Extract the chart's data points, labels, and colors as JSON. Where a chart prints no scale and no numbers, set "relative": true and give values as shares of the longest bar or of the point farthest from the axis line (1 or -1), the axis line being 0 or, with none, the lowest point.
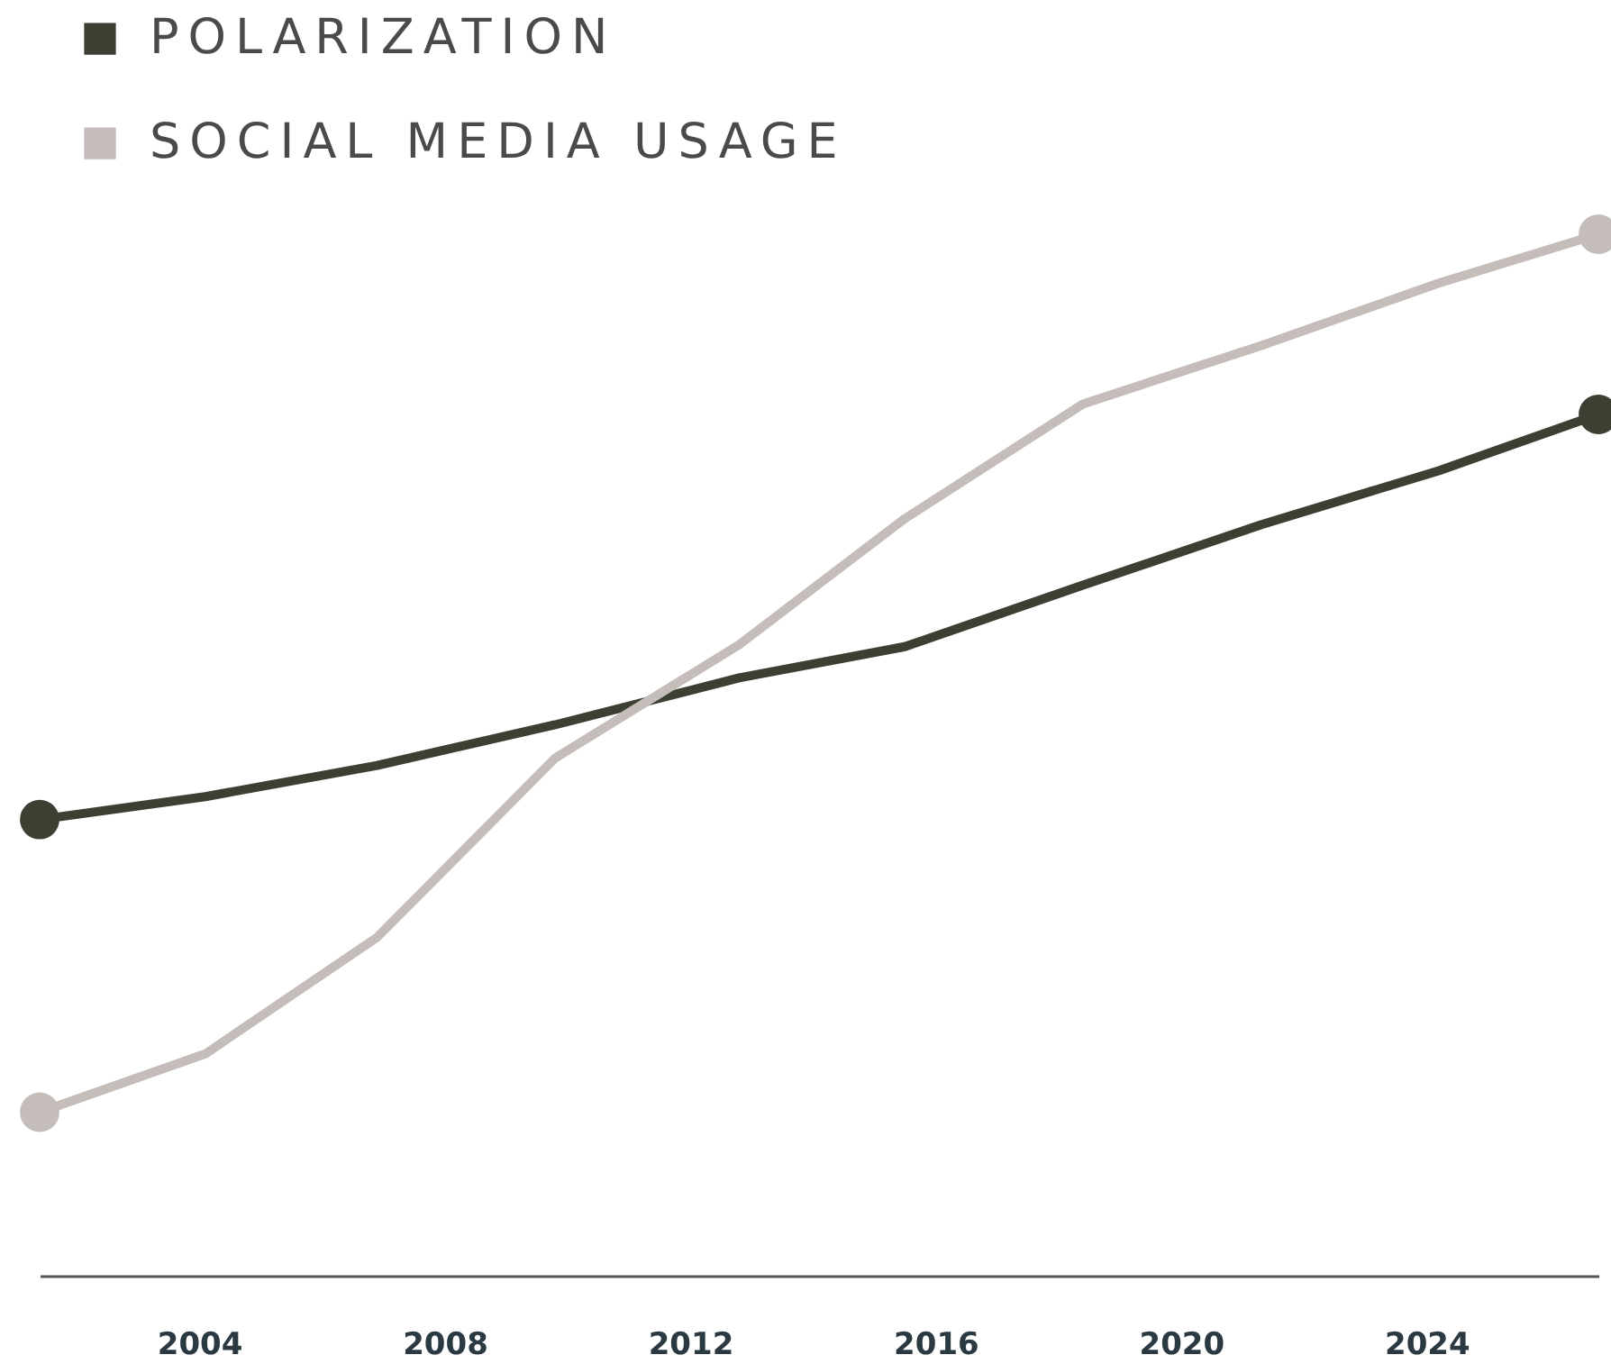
{
  "chart_data": {
    "type": "line",
    "relative": true,
    "legend": "top left",
    "line_style": "solid",
    "grid": false,
    "x": [
      2001.4,
      2004.1,
      2006.9,
      2009.8,
      2012.8,
      2015.5,
      2018.4,
      2021.3,
      2024.2,
      2026.8
    ],
    "xlim": [
      2001.4,
      2026.8
    ],
    "xticks": [
      2004,
      2008,
      2012,
      2016,
      2020,
      2024
    ],
    "series": [
      {
        "name": "POLARIZATION",
        "color": "#3b4033",
        "values": [
          0.438,
          0.46,
          0.49,
          0.529,
          0.574,
          0.604,
          0.663,
          0.721,
          0.773,
          0.827
        ]
      },
      {
        "name": "SOCIAL MEDIA USAGE",
        "color": "#c5bdb9",
        "values": [
          0.157,
          0.213,
          0.325,
          0.497,
          0.606,
          0.727,
          0.837,
          0.893,
          0.953,
          1
        ]
      }
    ]
  }
}
